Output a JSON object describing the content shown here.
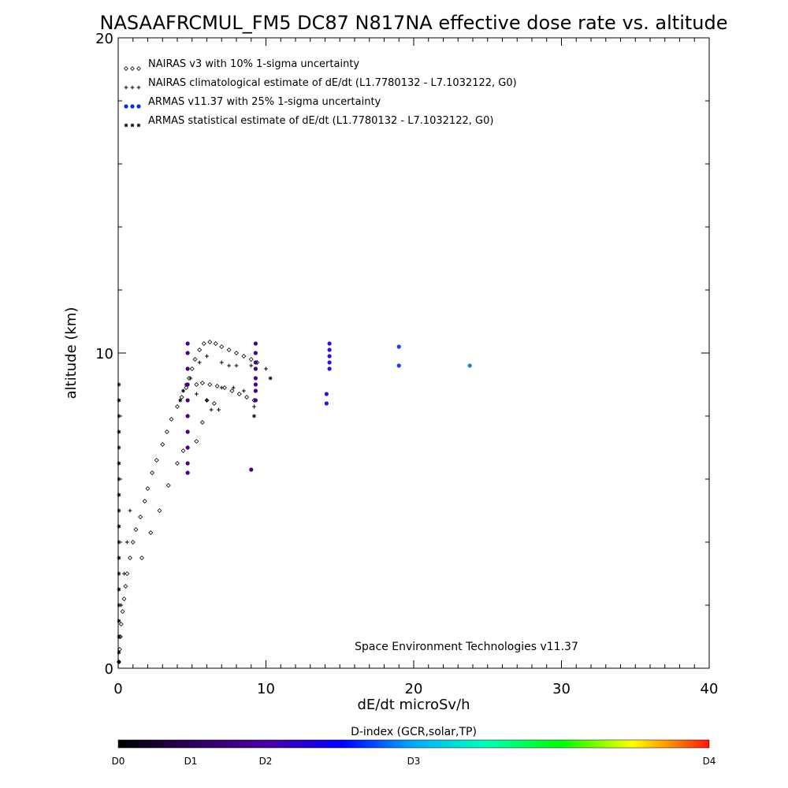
{
  "chart_data": {
    "type": "scatter",
    "title": "NASAAFRCMUL_FM5 DC87 N817NA effective dose rate vs. altitude",
    "xlabel": "dE/dt microSv/h",
    "ylabel": "altitude (km)",
    "xlim": [
      0,
      40
    ],
    "ylim": [
      0,
      20
    ],
    "x_ticks": [
      0,
      10,
      20,
      30,
      40
    ],
    "y_ticks": [
      0,
      10,
      20
    ],
    "grid": false,
    "legend_position": "top-left",
    "credit": "Space Environment Technologies v11.37",
    "legend": [
      {
        "label": "NAIRAS v3 with 10% 1-sigma uncertainty",
        "marker": "diamond",
        "color": "#000000"
      },
      {
        "label": "NAIRAS climatological estimate of dE/dt (L1.7780132 - L7.1032122, G0)",
        "marker": "plus",
        "color": "#000000"
      },
      {
        "label": "ARMAS v11.37 with 25% 1-sigma uncertainty",
        "marker": "dot",
        "color": "#0a2adf"
      },
      {
        "label": "ARMAS statistical estimate of dE/dt (L1.7780132 - L7.1032122, G0)",
        "marker": "asterisk",
        "color": "#000000"
      }
    ],
    "series": [
      {
        "marker": "diamond",
        "points": [
          [
            0.05,
            0.2
          ],
          [
            0.1,
            0.6
          ],
          [
            0.15,
            1.0
          ],
          [
            0.2,
            1.4
          ],
          [
            0.3,
            1.8
          ],
          [
            0.4,
            2.2
          ],
          [
            0.5,
            2.6
          ],
          [
            0.6,
            3.0
          ],
          [
            0.8,
            3.5
          ],
          [
            1.0,
            4.0
          ],
          [
            1.2,
            4.4
          ],
          [
            1.5,
            4.8
          ],
          [
            1.8,
            5.3
          ],
          [
            2.0,
            5.7
          ],
          [
            2.3,
            6.2
          ],
          [
            2.6,
            6.6
          ],
          [
            3.0,
            7.1
          ],
          [
            3.3,
            7.5
          ],
          [
            3.6,
            7.9
          ],
          [
            4.0,
            8.3
          ],
          [
            4.3,
            8.6
          ],
          [
            4.6,
            8.9
          ],
          [
            4.8,
            9.2
          ],
          [
            5.0,
            9.5
          ],
          [
            5.2,
            9.8
          ],
          [
            5.5,
            10.1
          ],
          [
            5.8,
            10.3
          ],
          [
            6.2,
            10.35
          ],
          [
            6.6,
            10.3
          ],
          [
            7.0,
            10.2
          ],
          [
            7.5,
            10.1
          ],
          [
            8.0,
            10.0
          ],
          [
            8.5,
            9.9
          ],
          [
            9.0,
            9.8
          ],
          [
            9.4,
            9.7
          ],
          [
            5.3,
            9.0
          ],
          [
            5.7,
            9.05
          ],
          [
            6.2,
            9.0
          ],
          [
            6.7,
            8.95
          ],
          [
            7.2,
            8.9
          ],
          [
            7.7,
            8.8
          ],
          [
            8.2,
            8.7
          ],
          [
            8.7,
            8.6
          ],
          [
            9.2,
            8.5
          ],
          [
            1.6,
            3.5
          ],
          [
            2.2,
            4.3
          ],
          [
            2.8,
            5.0
          ],
          [
            3.4,
            5.8
          ],
          [
            4.0,
            6.5
          ],
          [
            4.4,
            6.9
          ],
          [
            5.3,
            7.2
          ],
          [
            5.7,
            7.8
          ],
          [
            6.0,
            8.5
          ],
          [
            6.5,
            8.4
          ]
        ]
      },
      {
        "marker": "plus",
        "points": [
          [
            0.1,
            1.0
          ],
          [
            0.2,
            2.0
          ],
          [
            0.4,
            3.0
          ],
          [
            0.6,
            4.0
          ],
          [
            0.8,
            5.0
          ],
          [
            4.9,
            9.2
          ],
          [
            5.5,
            9.7
          ],
          [
            6.0,
            9.9
          ],
          [
            7.0,
            9.7
          ],
          [
            7.5,
            9.6
          ],
          [
            8.0,
            9.6
          ],
          [
            9.0,
            9.6
          ],
          [
            10.0,
            9.5
          ],
          [
            5.3,
            8.7
          ],
          [
            6.0,
            8.5
          ],
          [
            7.0,
            8.9
          ],
          [
            7.8,
            8.9
          ],
          [
            8.5,
            8.8
          ],
          [
            6.3,
            8.2
          ],
          [
            6.8,
            8.2
          ],
          [
            9.2,
            8.3
          ]
        ]
      },
      {
        "marker": "asterisk",
        "points": [
          [
            0.05,
            9.0
          ],
          [
            0.05,
            8.5
          ],
          [
            0.05,
            8.0
          ],
          [
            0.05,
            7.5
          ],
          [
            0.05,
            7.0
          ],
          [
            0.05,
            6.5
          ],
          [
            0.05,
            6.0
          ],
          [
            0.05,
            5.5
          ],
          [
            0.05,
            5.0
          ],
          [
            0.05,
            4.5
          ],
          [
            0.05,
            4.0
          ],
          [
            0.05,
            3.5
          ],
          [
            0.05,
            3.0
          ],
          [
            0.05,
            2.5
          ],
          [
            0.05,
            2.0
          ],
          [
            0.05,
            1.5
          ],
          [
            0.05,
            1.0
          ],
          [
            0.05,
            0.5
          ],
          [
            0.05,
            0.2
          ],
          [
            4.2,
            8.5
          ],
          [
            4.4,
            8.8
          ],
          [
            4.6,
            9.0
          ],
          [
            9.2,
            8.0
          ],
          [
            10.3,
            9.2
          ]
        ]
      },
      {
        "marker": "dot",
        "color_by": "D-index",
        "points": [
          [
            4.7,
            6.2
          ],
          [
            4.7,
            6.5
          ],
          [
            4.7,
            7.0
          ],
          [
            4.7,
            7.5
          ],
          [
            4.7,
            8.0
          ],
          [
            4.7,
            8.5
          ],
          [
            4.7,
            9.0
          ],
          [
            4.7,
            9.5
          ],
          [
            4.7,
            10.0
          ],
          [
            4.7,
            10.3
          ],
          [
            9.3,
            8.5
          ],
          [
            9.3,
            8.8
          ],
          [
            9.3,
            9.0
          ],
          [
            9.3,
            9.2
          ],
          [
            9.3,
            9.5
          ],
          [
            9.3,
            9.7
          ],
          [
            9.3,
            10.0
          ],
          [
            9.3,
            10.3
          ],
          [
            9.0,
            6.3
          ],
          [
            14.1,
            8.4
          ],
          [
            14.1,
            8.7
          ],
          [
            14.3,
            9.5
          ],
          [
            14.3,
            9.7
          ],
          [
            14.3,
            9.9
          ],
          [
            14.3,
            10.1
          ],
          [
            14.3,
            10.3
          ],
          [
            19.0,
            9.6
          ],
          [
            19.0,
            10.2
          ],
          [
            23.8,
            9.6
          ]
        ]
      }
    ],
    "colorbar": {
      "title": "D-index (GCR,solar,TP)",
      "labels": [
        "D0",
        "D1",
        "D2",
        "D3",
        "D4"
      ],
      "colors": [
        "#000000",
        "#4b0082",
        "#0000ff",
        "#00ffff",
        "#00ff00",
        "#ffff00",
        "#ff0000"
      ]
    }
  }
}
